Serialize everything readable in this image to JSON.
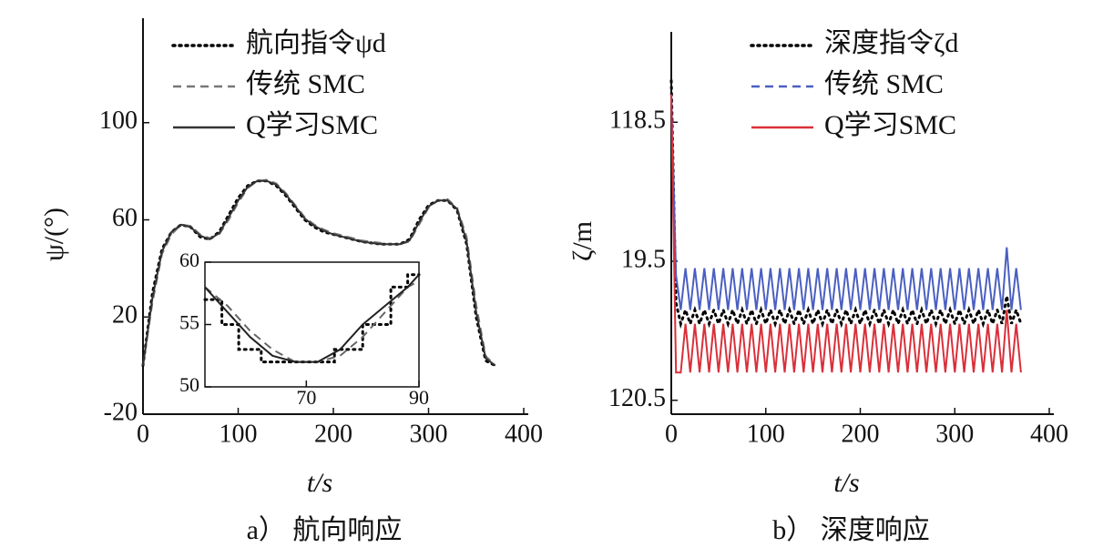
{
  "chart_data": [
    {
      "type": "line",
      "x_label": "t/s",
      "y_label": "ψ/(°)",
      "caption": "a） 航向响应",
      "xlim": [
        0,
        400
      ],
      "xticks": [
        0,
        100,
        200,
        300,
        400
      ],
      "ylim": [
        -20,
        143
      ],
      "yticks": [
        -20,
        20,
        60,
        100
      ],
      "x": [
        0,
        10,
        20,
        30,
        40,
        50,
        60,
        70,
        80,
        90,
        100,
        110,
        120,
        130,
        140,
        150,
        160,
        170,
        180,
        190,
        200,
        210,
        220,
        230,
        240,
        250,
        260,
        270,
        280,
        290,
        300,
        310,
        320,
        330,
        340,
        350,
        360,
        370
      ],
      "series": [
        {
          "name": "航向指令ψd",
          "color": "#000000",
          "style": "dotted",
          "values": [
            0,
            30,
            48,
            55,
            58,
            57,
            53,
            52,
            55,
            62,
            69,
            74,
            76,
            76,
            74,
            70,
            65,
            60,
            57,
            55,
            54,
            53,
            52,
            51,
            50.5,
            50,
            50,
            50,
            52,
            60,
            66,
            68,
            68,
            64,
            50,
            20,
            2,
            0
          ]
        },
        {
          "name": "传统 SMC",
          "color": "#777777",
          "style": "dashed",
          "values": [
            0,
            26,
            46,
            54,
            58,
            57.5,
            54,
            52.5,
            54,
            60,
            67,
            73,
            76,
            76.5,
            75,
            71,
            66,
            61,
            58,
            56,
            54.5,
            53.5,
            52.5,
            51.5,
            51,
            50.5,
            50,
            50,
            51,
            58,
            65,
            68,
            68.5,
            65,
            53,
            25,
            4,
            0
          ]
        },
        {
          "name": "Q学习SMC",
          "color": "#333333",
          "style": "solid",
          "values": [
            0,
            28,
            47,
            55,
            58,
            57,
            53.5,
            52,
            54.5,
            61,
            68,
            73.5,
            76,
            76,
            74.5,
            70.5,
            65.5,
            60.5,
            57.5,
            55.5,
            54,
            53,
            52,
            51,
            50.5,
            50,
            50,
            50,
            51.5,
            59,
            65.5,
            68,
            68,
            64.5,
            51,
            22,
            3,
            0
          ]
        }
      ]
    },
    {
      "type": "line",
      "inset": true,
      "xlim": [
        52,
        90
      ],
      "xticks": [
        70,
        90
      ],
      "ylim": [
        50,
        60
      ],
      "yticks": [
        50,
        55,
        60
      ],
      "series": [
        {
          "color": "#000000",
          "style": "dotted",
          "x": [
            52,
            55,
            55,
            58,
            58,
            62,
            62,
            75,
            75,
            80,
            80,
            85,
            85,
            88,
            88,
            90
          ],
          "values": [
            57,
            57,
            55,
            55,
            53,
            53,
            52,
            52,
            53,
            53,
            55,
            55,
            58,
            58,
            59,
            59
          ]
        },
        {
          "color": "#666666",
          "style": "dashed",
          "x": [
            52,
            56,
            60,
            64,
            68,
            72,
            76,
            80,
            84,
            88,
            90
          ],
          "values": [
            58,
            56.5,
            54.5,
            53,
            52,
            52,
            52.5,
            54,
            56,
            58,
            58.5
          ]
        },
        {
          "color": "#222222",
          "style": "solid",
          "x": [
            52,
            56,
            60,
            64,
            68,
            72,
            76,
            80,
            84,
            88,
            90
          ],
          "values": [
            58,
            56,
            54,
            52.5,
            52,
            52,
            53,
            55,
            56.5,
            58,
            59
          ]
        }
      ]
    },
    {
      "type": "line",
      "x_label": "t/s",
      "y_label": "ζ/m",
      "caption": "b） 深度响应",
      "xlim": [
        0,
        400
      ],
      "xticks": [
        0,
        100,
        200,
        300,
        400
      ],
      "ylim": [
        120.6,
        117.85
      ],
      "yticks": [
        118.5,
        {
          "value": 119.5,
          "label": "19.5"
        },
        120.5
      ],
      "x": [
        0,
        5,
        10,
        15,
        20,
        25,
        30,
        35,
        40,
        45,
        50,
        55,
        60,
        65,
        70,
        75,
        80,
        85,
        90,
        95,
        100,
        105,
        110,
        115,
        120,
        125,
        130,
        135,
        140,
        145,
        150,
        155,
        160,
        165,
        170,
        175,
        180,
        185,
        190,
        195,
        200,
        205,
        210,
        215,
        220,
        225,
        230,
        235,
        240,
        245,
        250,
        255,
        260,
        265,
        270,
        275,
        280,
        285,
        290,
        295,
        300,
        305,
        310,
        315,
        320,
        325,
        330,
        335,
        340,
        345,
        350,
        355,
        360,
        365,
        370
      ],
      "series": [
        {
          "name": "深度指令ζd",
          "color": "#000000",
          "style": "dotted",
          "legend_style": "dotted",
          "values": [
            118.2,
            119.8,
            119.95,
            119.85,
            119.95,
            119.85,
            119.95,
            119.85,
            119.95,
            119.85,
            119.95,
            119.85,
            119.95,
            119.85,
            119.95,
            119.85,
            119.95,
            119.85,
            119.95,
            119.85,
            119.95,
            119.85,
            119.95,
            119.85,
            119.95,
            119.85,
            119.95,
            119.85,
            119.95,
            119.85,
            119.95,
            119.85,
            119.95,
            119.85,
            119.95,
            119.85,
            119.95,
            119.85,
            119.95,
            119.85,
            119.95,
            119.85,
            119.95,
            119.85,
            119.95,
            119.85,
            119.95,
            119.85,
            119.95,
            119.85,
            119.95,
            119.85,
            119.95,
            119.85,
            119.95,
            119.85,
            119.95,
            119.85,
            119.95,
            119.85,
            119.95,
            119.85,
            119.95,
            119.85,
            119.95,
            119.85,
            119.95,
            119.85,
            119.95,
            119.85,
            119.95,
            119.75,
            119.95,
            119.85,
            119.95
          ]
        },
        {
          "name": "传统 SMC",
          "color": "#4a5fc1",
          "style": "solid",
          "legend_style": "dashed",
          "values": [
            118.3,
            119.6,
            119.85,
            119.55,
            119.85,
            119.55,
            119.85,
            119.55,
            119.85,
            119.55,
            119.85,
            119.55,
            119.85,
            119.55,
            119.85,
            119.55,
            119.85,
            119.55,
            119.85,
            119.55,
            119.85,
            119.55,
            119.85,
            119.55,
            119.85,
            119.55,
            119.85,
            119.55,
            119.85,
            119.55,
            119.85,
            119.55,
            119.85,
            119.55,
            119.85,
            119.55,
            119.85,
            119.55,
            119.85,
            119.55,
            119.85,
            119.55,
            119.85,
            119.55,
            119.85,
            119.55,
            119.85,
            119.55,
            119.85,
            119.55,
            119.85,
            119.55,
            119.85,
            119.55,
            119.85,
            119.55,
            119.85,
            119.55,
            119.85,
            119.55,
            119.85,
            119.55,
            119.85,
            119.55,
            119.85,
            119.55,
            119.85,
            119.55,
            119.85,
            119.55,
            119.85,
            119.4,
            119.85,
            119.55,
            119.85
          ]
        },
        {
          "name": "Q学习SMC",
          "color": "#d9303a",
          "style": "solid",
          "legend_style": "solid",
          "values": [
            118.3,
            120.3,
            120.3,
            119.95,
            120.3,
            119.95,
            120.3,
            119.95,
            120.3,
            119.95,
            120.3,
            119.95,
            120.3,
            119.95,
            120.3,
            119.95,
            120.3,
            119.95,
            120.3,
            119.95,
            120.3,
            119.95,
            120.3,
            119.95,
            120.3,
            119.95,
            120.3,
            119.95,
            120.3,
            119.95,
            120.3,
            119.95,
            120.3,
            119.95,
            120.3,
            119.95,
            120.3,
            119.95,
            120.3,
            119.95,
            120.3,
            119.95,
            120.3,
            119.95,
            120.3,
            119.95,
            120.3,
            119.95,
            120.3,
            119.95,
            120.3,
            119.95,
            120.3,
            119.95,
            120.3,
            119.95,
            120.3,
            119.95,
            120.3,
            119.95,
            120.3,
            119.95,
            120.3,
            119.95,
            120.3,
            119.95,
            120.3,
            119.95,
            120.3,
            119.95,
            120.3,
            119.85,
            120.3,
            119.95,
            120.3
          ]
        }
      ]
    }
  ]
}
